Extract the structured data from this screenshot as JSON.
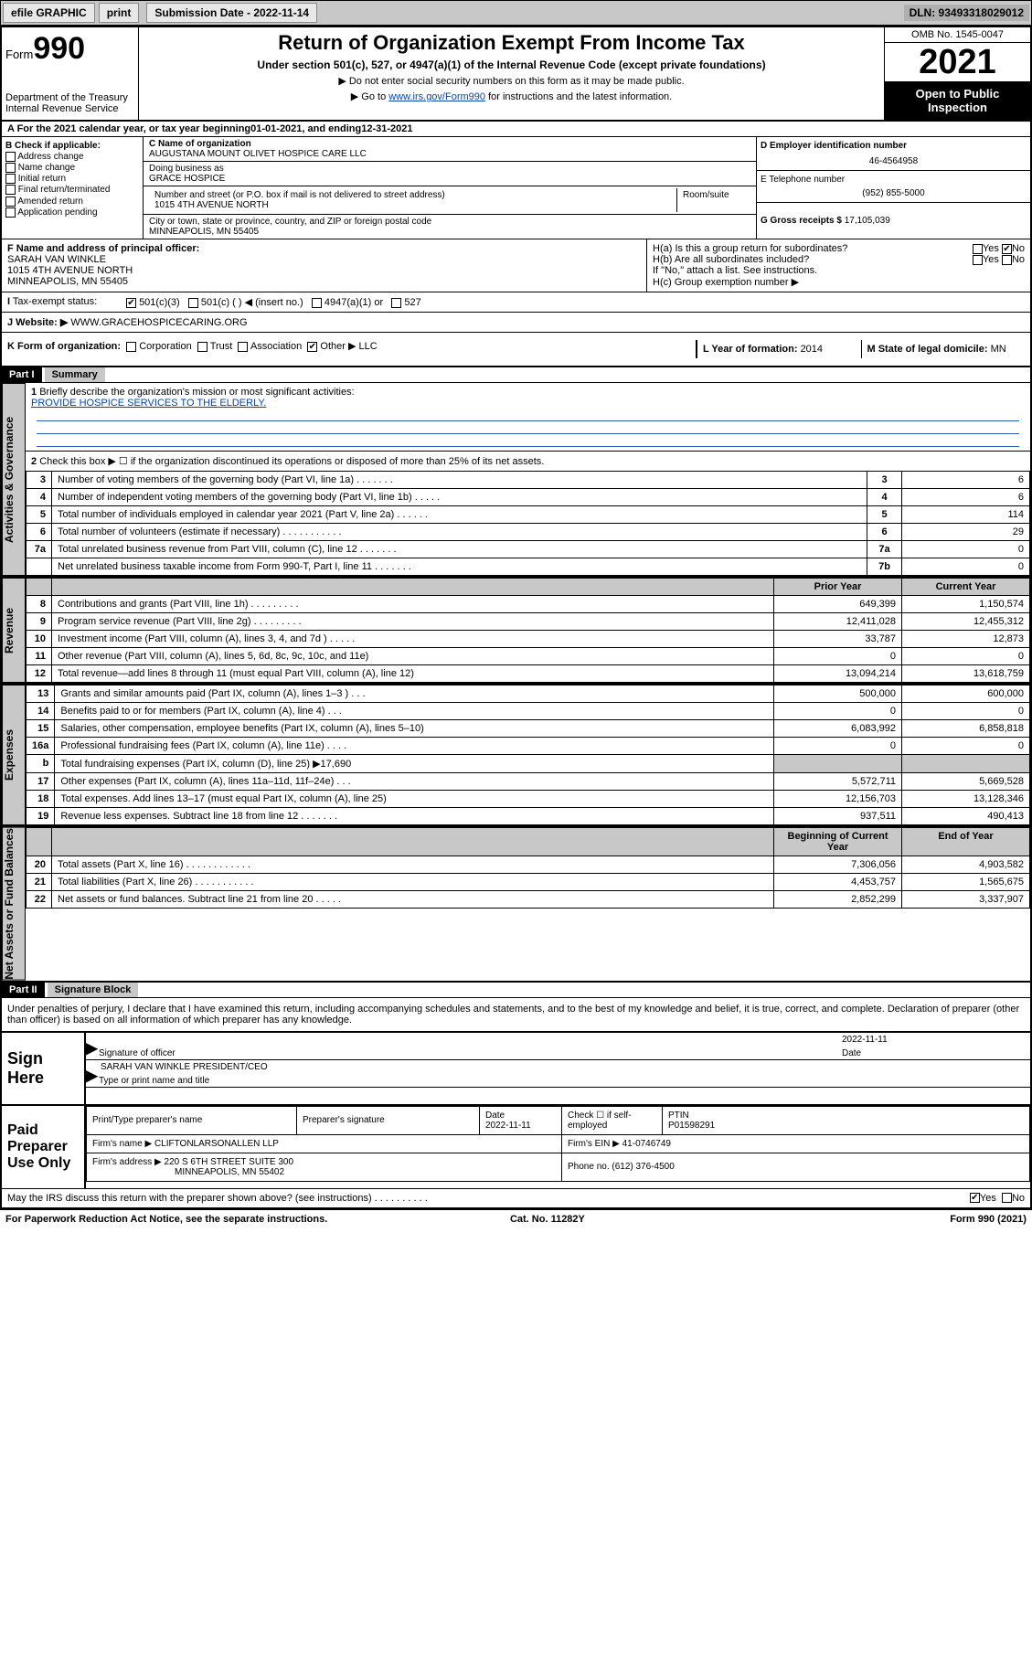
{
  "topbar": {
    "efile": "efile GRAPHIC",
    "print": "print",
    "sub_label": "Submission Date - 2022-11-14",
    "dln": "DLN: 93493318029012"
  },
  "header": {
    "form_prefix": "Form",
    "form_num": "990",
    "dept": "Department of the Treasury Internal Revenue Service",
    "title": "Return of Organization Exempt From Income Tax",
    "subtitle": "Under section 501(c), 527, or 4947(a)(1) of the Internal Revenue Code (except private foundations)",
    "instr1": "▶ Do not enter social security numbers on this form as it may be made public.",
    "instr2_pre": "▶ Go to ",
    "instr2_link": "www.irs.gov/Form990",
    "instr2_post": " for instructions and the latest information.",
    "omb": "OMB No. 1545-0047",
    "year": "2021",
    "open_pub": "Open to Public Inspection"
  },
  "row_a": {
    "label": "A For the 2021 calendar year, or tax year beginning ",
    "begin": "01-01-2021",
    "mid": " , and ending ",
    "end": "12-31-2021"
  },
  "col_b": {
    "hdr": "B Check if applicable:",
    "items": [
      "Address change",
      "Name change",
      "Initial return",
      "Final return/terminated",
      "Amended return",
      "Application pending"
    ]
  },
  "col_c": {
    "name_lbl": "C Name of organization",
    "name": "AUGUSTANA MOUNT OLIVET HOSPICE CARE LLC",
    "dba_lbl": "Doing business as",
    "dba": "GRACE HOSPICE",
    "addr_lbl": "Number and street (or P.O. box if mail is not delivered to street address)",
    "addr": "1015 4TH AVENUE NORTH",
    "room_lbl": "Room/suite",
    "city_lbl": "City or town, state or province, country, and ZIP or foreign postal code",
    "city": "MINNEAPOLIS, MN  55405"
  },
  "col_d": {
    "ein_lbl": "D Employer identification number",
    "ein": "46-4564958",
    "tel_lbl": "E Telephone number",
    "tel": "(952) 855-5000",
    "gross_lbl": "G Gross receipts $ ",
    "gross": "17,105,039"
  },
  "row_f": {
    "lbl": "F Name and address of principal officer:",
    "name": "SARAH VAN WINKLE",
    "addr1": "1015 4TH AVENUE NORTH",
    "addr2": "MINNEAPOLIS, MN  55405"
  },
  "row_h": {
    "a": "H(a)  Is this a group return for subordinates?",
    "b": "H(b)  Are all subordinates included?",
    "b_note": "If \"No,\" attach a list. See instructions.",
    "c": "H(c)  Group exemption number ▶"
  },
  "row_i": {
    "lbl": "Tax-exempt status:",
    "opts": [
      "501(c)(3)",
      "501(c) (  ) ◀ (insert no.)",
      "4947(a)(1) or",
      "527"
    ]
  },
  "row_j": {
    "lbl": "J   Website: ▶",
    "val": "WWW.GRACEHOSPICECARING.ORG"
  },
  "row_k": {
    "lbl": "K Form of organization:",
    "opts": [
      "Corporation",
      "Trust",
      "Association",
      "Other ▶"
    ],
    "other": "LLC",
    "l_lbl": "L Year of formation: ",
    "l_val": "2014",
    "m_lbl": "M State of legal domicile: ",
    "m_val": "MN"
  },
  "parts": {
    "p1": "Part I",
    "p1t": "Summary",
    "p2": "Part II",
    "p2t": "Signature Block"
  },
  "summary": {
    "q1": "Briefly describe the organization's mission or most significant activities:",
    "mission": "PROVIDE HOSPICE SERVICES TO THE ELDERLY.",
    "q2": "Check this box ▶ ☐  if the organization discontinued its operations or disposed of more than 25% of its net assets.",
    "rows_gov": [
      {
        "n": "3",
        "t": "Number of voting members of the governing body (Part VI, line 1a)  .   .   .   .   .   .   .",
        "b": "3",
        "v": "6"
      },
      {
        "n": "4",
        "t": "Number of independent voting members of the governing body (Part VI, line 1b)  .   .   .   .   .",
        "b": "4",
        "v": "6"
      },
      {
        "n": "5",
        "t": "Total number of individuals employed in calendar year 2021 (Part V, line 2a)  .   .   .   .   .   .",
        "b": "5",
        "v": "114"
      },
      {
        "n": "6",
        "t": "Total number of volunteers (estimate if necessary)  .   .   .   .   .   .   .   .   .   .   .",
        "b": "6",
        "v": "29"
      },
      {
        "n": "7a",
        "t": "Total unrelated business revenue from Part VIII, column (C), line 12  .   .   .   .   .   .   .",
        "b": "7a",
        "v": "0"
      },
      {
        "n": "",
        "t": "Net unrelated business taxable income from Form 990-T, Part I, line 11  .   .   .   .   .   .   .",
        "b": "7b",
        "v": "0"
      }
    ],
    "col_hdr": {
      "py": "Prior Year",
      "cy": "Current Year",
      "by": "Beginning of Current Year",
      "ey": "End of Year"
    },
    "rev": [
      {
        "n": "8",
        "t": "Contributions and grants (Part VIII, line 1h)  .   .   .   .   .   .   .   .   .",
        "p": "649,399",
        "c": "1,150,574"
      },
      {
        "n": "9",
        "t": "Program service revenue (Part VIII, line 2g)  .   .   .   .   .   .   .   .   .",
        "p": "12,411,028",
        "c": "12,455,312"
      },
      {
        "n": "10",
        "t": "Investment income (Part VIII, column (A), lines 3, 4, and 7d )  .   .   .   .   .",
        "p": "33,787",
        "c": "12,873"
      },
      {
        "n": "11",
        "t": "Other revenue (Part VIII, column (A), lines 5, 6d, 8c, 9c, 10c, and 11e)",
        "p": "0",
        "c": "0"
      },
      {
        "n": "12",
        "t": "Total revenue—add lines 8 through 11 (must equal Part VIII, column (A), line 12)",
        "p": "13,094,214",
        "c": "13,618,759"
      }
    ],
    "exp": [
      {
        "n": "13",
        "t": "Grants and similar amounts paid (Part IX, column (A), lines 1–3 )  .   .   .",
        "p": "500,000",
        "c": "600,000"
      },
      {
        "n": "14",
        "t": "Benefits paid to or for members (Part IX, column (A), line 4)  .   .   .",
        "p": "0",
        "c": "0"
      },
      {
        "n": "15",
        "t": "Salaries, other compensation, employee benefits (Part IX, column (A), lines 5–10)",
        "p": "6,083,992",
        "c": "6,858,818"
      },
      {
        "n": "16a",
        "t": "Professional fundraising fees (Part IX, column (A), line 11e)  .   .   .   .",
        "p": "0",
        "c": "0"
      },
      {
        "n": "b",
        "t": "Total fundraising expenses (Part IX, column (D), line 25) ▶17,690",
        "p": "",
        "c": "",
        "shade": true
      },
      {
        "n": "17",
        "t": "Other expenses (Part IX, column (A), lines 11a–11d, 11f–24e)  .   .   .",
        "p": "5,572,711",
        "c": "5,669,528"
      },
      {
        "n": "18",
        "t": "Total expenses. Add lines 13–17 (must equal Part IX, column (A), line 25)",
        "p": "12,156,703",
        "c": "13,128,346"
      },
      {
        "n": "19",
        "t": "Revenue less expenses. Subtract line 18 from line 12  .   .   .   .   .   .   .",
        "p": "937,511",
        "c": "490,413"
      }
    ],
    "net": [
      {
        "n": "20",
        "t": "Total assets (Part X, line 16)  .   .   .   .   .   .   .   .   .   .   .   .",
        "p": "7,306,056",
        "c": "4,903,582"
      },
      {
        "n": "21",
        "t": "Total liabilities (Part X, line 26)  .   .   .   .   .   .   .   .   .   .   .",
        "p": "4,453,757",
        "c": "1,565,675"
      },
      {
        "n": "22",
        "t": "Net assets or fund balances. Subtract line 21 from line 20  .   .   .   .   .",
        "p": "2,852,299",
        "c": "3,337,907"
      }
    ],
    "vlabels": {
      "gov": "Activities & Governance",
      "rev": "Revenue",
      "exp": "Expenses",
      "net": "Net Assets or Fund Balances"
    }
  },
  "decl": "Under penalties of perjury, I declare that I have examined this return, including accompanying schedules and statements, and to the best of my knowledge and belief, it is true, correct, and complete. Declaration of preparer (other than officer) is based on all information of which preparer has any knowledge.",
  "sign": {
    "here": "Sign Here",
    "sig_lbl": "Signature of officer",
    "date_lbl": "Date",
    "date": "2022-11-11",
    "name": "SARAH VAN WINKLE  PRESIDENT/CEO",
    "name_lbl": "Type or print name and title"
  },
  "paid": {
    "lbl": "Paid Preparer Use Only",
    "h": {
      "a": "Print/Type preparer's name",
      "b": "Preparer's signature",
      "c": "Date",
      "d": "Check ☐ if self-employed",
      "e": "PTIN"
    },
    "date": "2022-11-11",
    "ptin": "P01598291",
    "firm_name_lbl": "Firm's name    ▶ ",
    "firm_name": "CLIFTONLARSONALLEN LLP",
    "firm_ein_lbl": "Firm's EIN ▶ ",
    "firm_ein": "41-0746749",
    "firm_addr_lbl": "Firm's address ▶ ",
    "firm_addr1": "220 S 6TH STREET SUITE 300",
    "firm_addr2": "MINNEAPOLIS, MN  55402",
    "phone_lbl": "Phone no. ",
    "phone": "(612) 376-4500"
  },
  "may": "May the IRS discuss this return with the preparer shown above? (see instructions)  .   .   .   .   .   .   .   .   .   .",
  "footer": {
    "l": "For Paperwork Reduction Act Notice, see the separate instructions.",
    "m": "Cat. No. 11282Y",
    "r": "Form 990 (2021)"
  }
}
